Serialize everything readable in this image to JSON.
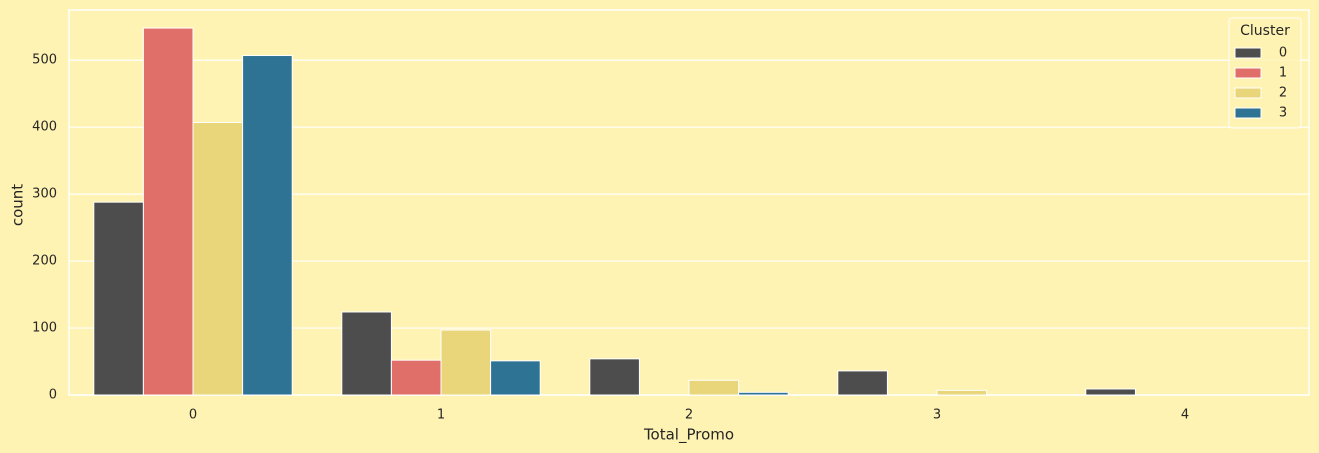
{
  "chart_data": {
    "type": "bar",
    "x_label": "Total_Promo",
    "y_label": "count",
    "categories": [
      "0",
      "1",
      "2",
      "3",
      "4"
    ],
    "series": [
      {
        "name": "0",
        "color": "#4d4d4d",
        "values": [
          288,
          124,
          54,
          36,
          9
        ]
      },
      {
        "name": "1",
        "color": "#e06f6a",
        "values": [
          548,
          52,
          0,
          0,
          0
        ]
      },
      {
        "name": "2",
        "color": "#ead67a",
        "values": [
          407,
          97,
          22,
          7,
          0
        ]
      },
      {
        "name": "3",
        "color": "#2e7294",
        "values": [
          507,
          51,
          4,
          0,
          0
        ]
      }
    ],
    "legend_title": "Cluster",
    "legend": "upper right",
    "ylim": [
      0,
      575
    ],
    "yticks": [
      0,
      100,
      200,
      300,
      400,
      500
    ],
    "grid": true
  }
}
